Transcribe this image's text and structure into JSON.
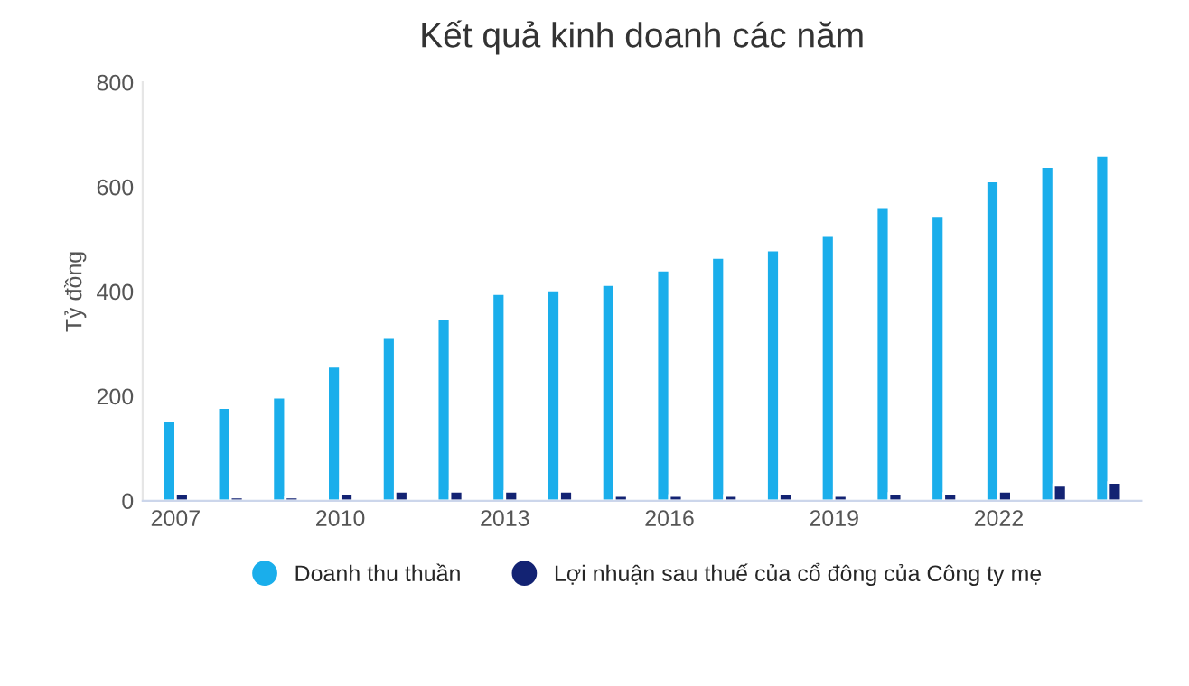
{
  "chart_data": {
    "type": "bar",
    "title": "Kết quả kinh doanh các năm",
    "ylabel": "Tỷ đồng",
    "categories": [
      "2007",
      null,
      null,
      "2010",
      null,
      null,
      "2013",
      null,
      null,
      "2016",
      null,
      null,
      "2019",
      null,
      null,
      "2022",
      null,
      null
    ],
    "series": [
      {
        "name": "Doanh thu thuần",
        "color": "#1aaeeb",
        "values": [
          154,
          178,
          198,
          257,
          312,
          347,
          396,
          403,
          413,
          441,
          465,
          479,
          507,
          562,
          545,
          611,
          639,
          660
        ]
      },
      {
        "name": "Lợi nhuận sau thuế của cổ đông của Công ty mẹ",
        "color": "#132373",
        "values": [
          14,
          7,
          7,
          14,
          18,
          18,
          18,
          18,
          10,
          10,
          10,
          14,
          10,
          14,
          14,
          18,
          31,
          35
        ]
      }
    ],
    "ylim": [
      0,
      800
    ],
    "yticks": [
      0,
      200,
      400,
      600,
      800
    ],
    "grid": false,
    "legend": "bottom"
  }
}
